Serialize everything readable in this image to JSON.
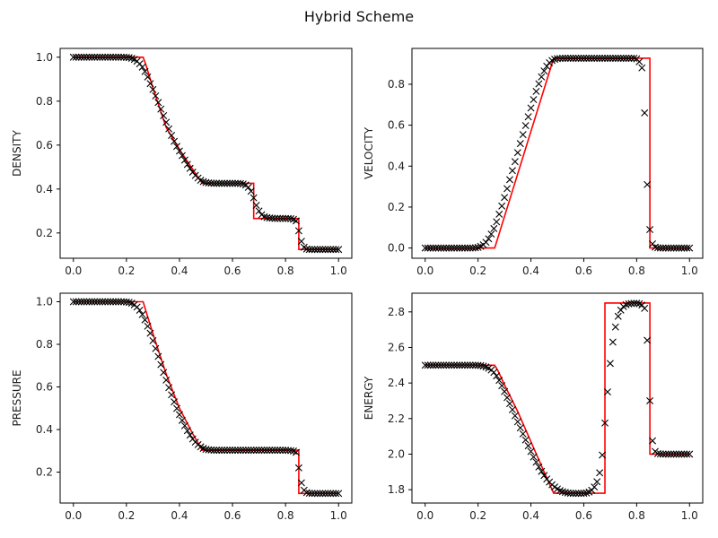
{
  "figure": {
    "title": "Hybrid Scheme"
  },
  "chart_data": [
    {
      "id": "density",
      "type": "line",
      "ylabel": "DENSITY",
      "xlim": [
        -0.05,
        1.05
      ],
      "ylim": [
        0.085,
        1.04
      ],
      "xticks": [
        0.0,
        0.2,
        0.4,
        0.6,
        0.8,
        1.0
      ],
      "xtick_labels": [
        "0.0",
        "0.2",
        "0.4",
        "0.6",
        "0.8",
        "1.0"
      ],
      "yticks": [
        0.2,
        0.4,
        0.6,
        0.8,
        1.0
      ],
      "ytick_labels": [
        "0.2",
        "0.4",
        "0.6",
        "0.8",
        "1.0"
      ],
      "exact": {
        "x": [
          0.0,
          0.263,
          0.275,
          0.3,
          0.35,
          0.4,
          0.45,
          0.486,
          0.55,
          0.6,
          0.68,
          0.68,
          0.8,
          0.85,
          0.85,
          1.0
        ],
        "y": [
          1.0,
          1.0,
          0.96,
          0.86,
          0.68,
          0.58,
          0.49,
          0.426,
          0.426,
          0.426,
          0.426,
          0.266,
          0.266,
          0.266,
          0.125,
          0.125
        ]
      },
      "numerical": {
        "x": [
          0.0,
          0.01,
          0.02,
          0.03,
          0.04,
          0.05,
          0.06,
          0.07,
          0.08,
          0.09,
          0.1,
          0.11,
          0.12,
          0.13,
          0.14,
          0.15,
          0.16,
          0.17,
          0.18,
          0.19,
          0.2,
          0.21,
          0.22,
          0.23,
          0.24,
          0.25,
          0.26,
          0.27,
          0.28,
          0.29,
          0.3,
          0.31,
          0.32,
          0.33,
          0.34,
          0.35,
          0.36,
          0.37,
          0.38,
          0.39,
          0.4,
          0.41,
          0.42,
          0.43,
          0.44,
          0.45,
          0.46,
          0.47,
          0.48,
          0.49,
          0.5,
          0.51,
          0.52,
          0.53,
          0.54,
          0.55,
          0.56,
          0.57,
          0.58,
          0.59,
          0.6,
          0.61,
          0.62,
          0.63,
          0.64,
          0.65,
          0.66,
          0.67,
          0.68,
          0.69,
          0.7,
          0.71,
          0.72,
          0.73,
          0.74,
          0.75,
          0.76,
          0.77,
          0.78,
          0.79,
          0.8,
          0.81,
          0.82,
          0.83,
          0.84,
          0.85,
          0.86,
          0.87,
          0.88,
          0.89,
          0.9,
          0.91,
          0.92,
          0.93,
          0.94,
          0.95,
          0.96,
          0.97,
          0.98,
          0.99,
          1.0
        ],
        "y": [
          1.0,
          1.0,
          1.0,
          1.0,
          1.0,
          1.0,
          1.0,
          1.0,
          1.0,
          1.0,
          1.0,
          1.0,
          1.0,
          1.0,
          1.0,
          1.0,
          1.0,
          1.0,
          1.0,
          1.0,
          0.999,
          0.998,
          0.995,
          0.99,
          0.982,
          0.97,
          0.955,
          0.935,
          0.91,
          0.88,
          0.853,
          0.824,
          0.794,
          0.764,
          0.734,
          0.704,
          0.674,
          0.644,
          0.617,
          0.594,
          0.573,
          0.552,
          0.532,
          0.512,
          0.494,
          0.477,
          0.462,
          0.45,
          0.44,
          0.434,
          0.43,
          0.428,
          0.427,
          0.426,
          0.426,
          0.426,
          0.426,
          0.426,
          0.426,
          0.426,
          0.426,
          0.426,
          0.426,
          0.425,
          0.423,
          0.418,
          0.408,
          0.39,
          0.36,
          0.326,
          0.3,
          0.283,
          0.274,
          0.27,
          0.268,
          0.267,
          0.266,
          0.266,
          0.266,
          0.266,
          0.266,
          0.266,
          0.265,
          0.262,
          0.255,
          0.21,
          0.162,
          0.135,
          0.127,
          0.125,
          0.125,
          0.125,
          0.125,
          0.125,
          0.125,
          0.125,
          0.125,
          0.125,
          0.125,
          0.125,
          0.125
        ]
      }
    },
    {
      "id": "velocity",
      "type": "line",
      "ylabel": "VELOCITY",
      "xlim": [
        -0.05,
        1.05
      ],
      "ylim": [
        -0.05,
        0.975
      ],
      "xticks": [
        0.0,
        0.2,
        0.4,
        0.6,
        0.8,
        1.0
      ],
      "xtick_labels": [
        "0.0",
        "0.2",
        "0.4",
        "0.6",
        "0.8",
        "1.0"
      ],
      "yticks": [
        0.0,
        0.2,
        0.4,
        0.6,
        0.8
      ],
      "ytick_labels": [
        "0.0",
        "0.2",
        "0.4",
        "0.6",
        "0.8"
      ],
      "exact": {
        "x": [
          0.0,
          0.263,
          0.486,
          0.85,
          0.85,
          1.0
        ],
        "y": [
          0.0,
          0.0,
          0.927,
          0.927,
          0.0,
          0.0
        ]
      },
      "numerical": {
        "x": [
          0.0,
          0.01,
          0.02,
          0.03,
          0.04,
          0.05,
          0.06,
          0.07,
          0.08,
          0.09,
          0.1,
          0.11,
          0.12,
          0.13,
          0.14,
          0.15,
          0.16,
          0.17,
          0.18,
          0.19,
          0.2,
          0.21,
          0.22,
          0.23,
          0.24,
          0.25,
          0.26,
          0.27,
          0.28,
          0.29,
          0.3,
          0.31,
          0.32,
          0.33,
          0.34,
          0.35,
          0.36,
          0.37,
          0.38,
          0.39,
          0.4,
          0.41,
          0.42,
          0.43,
          0.44,
          0.45,
          0.46,
          0.47,
          0.48,
          0.49,
          0.5,
          0.51,
          0.52,
          0.53,
          0.54,
          0.55,
          0.56,
          0.57,
          0.58,
          0.59,
          0.6,
          0.61,
          0.62,
          0.63,
          0.64,
          0.65,
          0.66,
          0.67,
          0.68,
          0.69,
          0.7,
          0.71,
          0.72,
          0.73,
          0.74,
          0.75,
          0.76,
          0.77,
          0.78,
          0.79,
          0.8,
          0.81,
          0.82,
          0.83,
          0.84,
          0.85,
          0.86,
          0.87,
          0.88,
          0.89,
          0.9,
          0.91,
          0.92,
          0.93,
          0.94,
          0.95,
          0.96,
          0.97,
          0.98,
          0.99,
          1.0
        ],
        "y": [
          0.0,
          0.0,
          0.0,
          0.0,
          0.0,
          0.0,
          0.0,
          0.0,
          0.0,
          0.0,
          0.0,
          0.0,
          0.0,
          0.0,
          0.0,
          0.0,
          0.0,
          0.0,
          0.0,
          0.001,
          0.003,
          0.008,
          0.016,
          0.028,
          0.045,
          0.068,
          0.095,
          0.128,
          0.165,
          0.205,
          0.247,
          0.29,
          0.334,
          0.378,
          0.422,
          0.466,
          0.51,
          0.554,
          0.598,
          0.641,
          0.684,
          0.725,
          0.765,
          0.802,
          0.836,
          0.865,
          0.888,
          0.905,
          0.916,
          0.922,
          0.925,
          0.926,
          0.927,
          0.927,
          0.927,
          0.927,
          0.927,
          0.927,
          0.927,
          0.927,
          0.927,
          0.927,
          0.927,
          0.927,
          0.927,
          0.927,
          0.927,
          0.927,
          0.927,
          0.927,
          0.927,
          0.927,
          0.927,
          0.927,
          0.927,
          0.927,
          0.927,
          0.927,
          0.927,
          0.927,
          0.924,
          0.91,
          0.88,
          0.66,
          0.31,
          0.09,
          0.02,
          0.004,
          0.001,
          0.0,
          0.0,
          0.0,
          0.0,
          0.0,
          0.0,
          0.0,
          0.0,
          0.0,
          0.0,
          0.0,
          0.0
        ]
      }
    },
    {
      "id": "pressure",
      "type": "line",
      "ylabel": "PRESSURE",
      "xlim": [
        -0.05,
        1.05
      ],
      "ylim": [
        0.055,
        1.04
      ],
      "xticks": [
        0.0,
        0.2,
        0.4,
        0.6,
        0.8,
        1.0
      ],
      "xtick_labels": [
        "0.0",
        "0.2",
        "0.4",
        "0.6",
        "0.8",
        "1.0"
      ],
      "yticks": [
        0.2,
        0.4,
        0.6,
        0.8,
        1.0
      ],
      "ytick_labels": [
        "0.2",
        "0.4",
        "0.6",
        "0.8",
        "1.0"
      ],
      "exact": {
        "x": [
          0.0,
          0.263,
          0.275,
          0.3,
          0.35,
          0.4,
          0.45,
          0.486,
          0.85,
          0.85,
          1.0
        ],
        "y": [
          1.0,
          1.0,
          0.95,
          0.85,
          0.66,
          0.5,
          0.38,
          0.303,
          0.303,
          0.1,
          0.1
        ]
      },
      "numerical": {
        "x": [
          0.0,
          0.01,
          0.02,
          0.03,
          0.04,
          0.05,
          0.06,
          0.07,
          0.08,
          0.09,
          0.1,
          0.11,
          0.12,
          0.13,
          0.14,
          0.15,
          0.16,
          0.17,
          0.18,
          0.19,
          0.2,
          0.21,
          0.22,
          0.23,
          0.24,
          0.25,
          0.26,
          0.27,
          0.28,
          0.29,
          0.3,
          0.31,
          0.32,
          0.33,
          0.34,
          0.35,
          0.36,
          0.37,
          0.38,
          0.39,
          0.4,
          0.41,
          0.42,
          0.43,
          0.44,
          0.45,
          0.46,
          0.47,
          0.48,
          0.49,
          0.5,
          0.51,
          0.52,
          0.53,
          0.54,
          0.55,
          0.56,
          0.57,
          0.58,
          0.59,
          0.6,
          0.61,
          0.62,
          0.63,
          0.64,
          0.65,
          0.66,
          0.67,
          0.68,
          0.69,
          0.7,
          0.71,
          0.72,
          0.73,
          0.74,
          0.75,
          0.76,
          0.77,
          0.78,
          0.79,
          0.8,
          0.81,
          0.82,
          0.83,
          0.84,
          0.85,
          0.86,
          0.87,
          0.88,
          0.89,
          0.9,
          0.91,
          0.92,
          0.93,
          0.94,
          0.95,
          0.96,
          0.97,
          0.98,
          0.99,
          1.0
        ],
        "y": [
          1.0,
          1.0,
          1.0,
          1.0,
          1.0,
          1.0,
          1.0,
          1.0,
          1.0,
          1.0,
          1.0,
          1.0,
          1.0,
          1.0,
          1.0,
          1.0,
          1.0,
          1.0,
          1.0,
          1.0,
          0.999,
          0.997,
          0.993,
          0.986,
          0.975,
          0.96,
          0.94,
          0.915,
          0.885,
          0.852,
          0.817,
          0.78,
          0.743,
          0.705,
          0.668,
          0.632,
          0.597,
          0.563,
          0.53,
          0.499,
          0.47,
          0.443,
          0.418,
          0.395,
          0.374,
          0.356,
          0.341,
          0.329,
          0.319,
          0.312,
          0.307,
          0.305,
          0.304,
          0.303,
          0.303,
          0.303,
          0.303,
          0.303,
          0.303,
          0.303,
          0.303,
          0.303,
          0.303,
          0.303,
          0.303,
          0.303,
          0.303,
          0.303,
          0.303,
          0.303,
          0.303,
          0.303,
          0.303,
          0.303,
          0.303,
          0.303,
          0.303,
          0.303,
          0.303,
          0.303,
          0.303,
          0.302,
          0.301,
          0.299,
          0.293,
          0.22,
          0.15,
          0.115,
          0.104,
          0.101,
          0.1,
          0.1,
          0.1,
          0.1,
          0.1,
          0.1,
          0.1,
          0.1,
          0.1,
          0.1,
          0.1
        ]
      }
    },
    {
      "id": "energy",
      "type": "line",
      "ylabel": "ENERGY",
      "xlim": [
        -0.05,
        1.05
      ],
      "ylim": [
        1.725,
        2.905
      ],
      "xticks": [
        0.0,
        0.2,
        0.4,
        0.6,
        0.8,
        1.0
      ],
      "xtick_labels": [
        "0.0",
        "0.2",
        "0.4",
        "0.6",
        "0.8",
        "1.0"
      ],
      "yticks": [
        1.8,
        2.0,
        2.2,
        2.4,
        2.6,
        2.8
      ],
      "ytick_labels": [
        "1.8",
        "2.0",
        "2.2",
        "2.4",
        "2.6",
        "2.8"
      ],
      "exact": {
        "x": [
          0.0,
          0.263,
          0.275,
          0.3,
          0.35,
          0.4,
          0.45,
          0.486,
          0.68,
          0.68,
          0.85,
          0.85,
          1.0
        ],
        "y": [
          2.5,
          2.5,
          2.47,
          2.39,
          2.24,
          2.07,
          1.9,
          1.78,
          1.78,
          2.85,
          2.85,
          2.0,
          2.0
        ]
      },
      "numerical": {
        "x": [
          0.0,
          0.01,
          0.02,
          0.03,
          0.04,
          0.05,
          0.06,
          0.07,
          0.08,
          0.09,
          0.1,
          0.11,
          0.12,
          0.13,
          0.14,
          0.15,
          0.16,
          0.17,
          0.18,
          0.19,
          0.2,
          0.21,
          0.22,
          0.23,
          0.24,
          0.25,
          0.26,
          0.27,
          0.28,
          0.29,
          0.3,
          0.31,
          0.32,
          0.33,
          0.34,
          0.35,
          0.36,
          0.37,
          0.38,
          0.39,
          0.4,
          0.41,
          0.42,
          0.43,
          0.44,
          0.45,
          0.46,
          0.47,
          0.48,
          0.49,
          0.5,
          0.51,
          0.52,
          0.53,
          0.54,
          0.55,
          0.56,
          0.57,
          0.58,
          0.59,
          0.6,
          0.61,
          0.62,
          0.63,
          0.64,
          0.65,
          0.66,
          0.67,
          0.68,
          0.69,
          0.7,
          0.71,
          0.72,
          0.73,
          0.74,
          0.75,
          0.76,
          0.77,
          0.78,
          0.79,
          0.8,
          0.81,
          0.82,
          0.83,
          0.84,
          0.85,
          0.86,
          0.87,
          0.88,
          0.89,
          0.9,
          0.91,
          0.92,
          0.93,
          0.94,
          0.95,
          0.96,
          0.97,
          0.98,
          0.99,
          1.0
        ],
        "y": [
          2.5,
          2.5,
          2.5,
          2.5,
          2.5,
          2.5,
          2.5,
          2.5,
          2.5,
          2.5,
          2.5,
          2.5,
          2.5,
          2.5,
          2.5,
          2.5,
          2.5,
          2.5,
          2.5,
          2.5,
          2.499,
          2.498,
          2.495,
          2.49,
          2.483,
          2.473,
          2.46,
          2.44,
          2.415,
          2.385,
          2.352,
          2.318,
          2.284,
          2.25,
          2.216,
          2.182,
          2.148,
          2.114,
          2.08,
          2.047,
          2.015,
          1.984,
          1.955,
          1.928,
          1.903,
          1.88,
          1.86,
          1.843,
          1.828,
          1.815,
          1.804,
          1.795,
          1.789,
          1.785,
          1.782,
          1.78,
          1.779,
          1.779,
          1.779,
          1.779,
          1.78,
          1.782,
          1.787,
          1.797,
          1.815,
          1.845,
          1.895,
          1.995,
          2.175,
          2.35,
          2.51,
          2.63,
          2.715,
          2.775,
          2.81,
          2.83,
          2.84,
          2.845,
          2.847,
          2.848,
          2.848,
          2.846,
          2.838,
          2.82,
          2.64,
          2.3,
          2.075,
          2.015,
          2.003,
          2.001,
          2.0,
          2.0,
          2.0,
          2.0,
          2.0,
          2.0,
          2.0,
          2.0,
          2.0,
          2.0,
          2.0
        ]
      }
    }
  ],
  "style": {
    "exact_color": "#ff0000",
    "marker_color": "#000000",
    "axis_color": "#000000"
  }
}
